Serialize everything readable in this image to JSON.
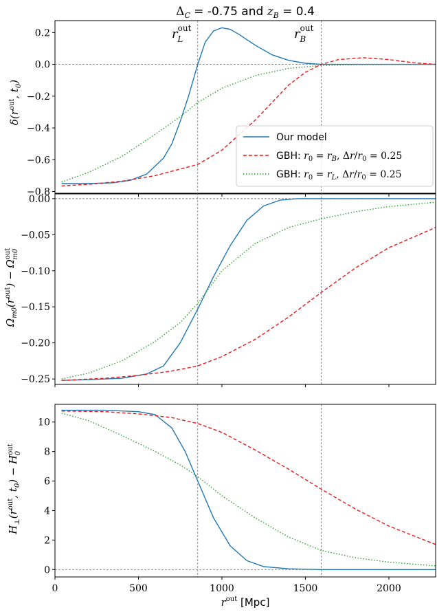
{
  "title": "Δ_C = -0.75 and z_B = 0.4",
  "xlabel": "r^out [Mpc]",
  "colors": {
    "our_model": "#1f77b4",
    "gbh_rb": "#e8191a",
    "gbh_rl": "#2ca02c",
    "ref_line": "#808080"
  },
  "chart_data": [
    {
      "type": "line",
      "ylabel": "δ(r^out, t_0)",
      "xlim": [
        0,
        2280
      ],
      "ylim": [
        -0.815,
        0.275
      ],
      "xticks": [
        0,
        500,
        1000,
        1500,
        2000
      ],
      "yticks": [
        -0.8,
        -0.6,
        -0.4,
        -0.2,
        0.0,
        0.2
      ],
      "ytick_labels": [
        "−0.8",
        "−0.6",
        "−0.4",
        "−0.2",
        "0.0",
        "0.2"
      ],
      "vlines": [
        {
          "x": 855,
          "label": "r_L^out"
        },
        {
          "x": 1595,
          "label": "r_B^out"
        }
      ],
      "hline": 0,
      "legend": {
        "position": "lower-right",
        "entries": [
          "Our model",
          "GBH: r_0 = r_B, Δr/r_0 = 0.25",
          "GBH: r_0 = r_L, Δr/r_0 = 0.25"
        ]
      },
      "series": [
        {
          "name": "Our model",
          "style": "solid",
          "points": [
            [
              40,
              -0.75
            ],
            [
              200,
              -0.75
            ],
            [
              350,
              -0.745
            ],
            [
              450,
              -0.73
            ],
            [
              550,
              -0.69
            ],
            [
              650,
              -0.59
            ],
            [
              700,
              -0.5
            ],
            [
              750,
              -0.36
            ],
            [
              800,
              -0.2
            ],
            [
              855,
              0.0
            ],
            [
              900,
              0.14
            ],
            [
              950,
              0.21
            ],
            [
              1000,
              0.23
            ],
            [
              1050,
              0.22
            ],
            [
              1100,
              0.19
            ],
            [
              1200,
              0.12
            ],
            [
              1300,
              0.06
            ],
            [
              1400,
              0.025
            ],
            [
              1500,
              0.007
            ],
            [
              1595,
              0.0
            ],
            [
              1700,
              0.0
            ],
            [
              2000,
              0.0
            ],
            [
              2280,
              0.0
            ]
          ]
        },
        {
          "name": "GBH: r_0 = r_B, Δr/r_0 = 0.25",
          "style": "dashed",
          "points": [
            [
              40,
              -0.765
            ],
            [
              200,
              -0.755
            ],
            [
              400,
              -0.735
            ],
            [
              600,
              -0.7
            ],
            [
              855,
              -0.63
            ],
            [
              1000,
              -0.54
            ],
            [
              1200,
              -0.35
            ],
            [
              1400,
              -0.13
            ],
            [
              1500,
              -0.05
            ],
            [
              1595,
              0.0
            ],
            [
              1700,
              0.03
            ],
            [
              1850,
              0.042
            ],
            [
              2000,
              0.03
            ],
            [
              2150,
              0.01
            ],
            [
              2280,
              0.0
            ]
          ]
        },
        {
          "name": "GBH: r_0 = r_L, Δr/r_0 = 0.25",
          "style": "dotted",
          "points": [
            [
              40,
              -0.74
            ],
            [
              200,
              -0.68
            ],
            [
              400,
              -0.58
            ],
            [
              600,
              -0.44
            ],
            [
              750,
              -0.33
            ],
            [
              855,
              -0.24
            ],
            [
              1000,
              -0.15
            ],
            [
              1200,
              -0.07
            ],
            [
              1400,
              -0.025
            ],
            [
              1595,
              -0.007
            ],
            [
              1800,
              -0.002
            ],
            [
              2280,
              0.0
            ]
          ]
        }
      ]
    },
    {
      "type": "line",
      "ylabel": "Ω_m0(r^out) − Ω_m0^out",
      "xlim": [
        0,
        2280
      ],
      "ylim": [
        -0.2575,
        0.0075
      ],
      "xticks": [
        0,
        500,
        1000,
        1500,
        2000
      ],
      "yticks": [
        -0.25,
        -0.2,
        -0.15,
        -0.1,
        -0.05,
        0.0
      ],
      "ytick_labels": [
        "−0.25",
        "−0.20",
        "−0.15",
        "−0.10",
        "−0.05",
        "0.00"
      ],
      "vlines": [
        {
          "x": 855
        },
        {
          "x": 1595
        }
      ],
      "hline": 0,
      "series": [
        {
          "name": "Our model",
          "style": "solid",
          "points": [
            [
              40,
              -0.252
            ],
            [
              200,
              -0.251
            ],
            [
              400,
              -0.249
            ],
            [
              550,
              -0.243
            ],
            [
              650,
              -0.232
            ],
            [
              750,
              -0.2
            ],
            [
              855,
              -0.153
            ],
            [
              950,
              -0.108
            ],
            [
              1050,
              -0.065
            ],
            [
              1150,
              -0.03
            ],
            [
              1250,
              -0.01
            ],
            [
              1350,
              -0.002
            ],
            [
              1450,
              0.0
            ],
            [
              2280,
              0.0
            ]
          ]
        },
        {
          "name": "GBH: r_0 = r_B, Δr/r_0 = 0.25",
          "style": "dashed",
          "points": [
            [
              40,
              -0.252
            ],
            [
              300,
              -0.249
            ],
            [
              500,
              -0.245
            ],
            [
              700,
              -0.239
            ],
            [
              855,
              -0.232
            ],
            [
              1000,
              -0.219
            ],
            [
              1200,
              -0.195
            ],
            [
              1400,
              -0.164
            ],
            [
              1595,
              -0.13
            ],
            [
              1800,
              -0.096
            ],
            [
              2000,
              -0.068
            ],
            [
              2280,
              -0.04
            ]
          ]
        },
        {
          "name": "GBH: r_0 = r_L, Δr/r_0 = 0.25",
          "style": "dotted",
          "points": [
            [
              40,
              -0.25
            ],
            [
              200,
              -0.242
            ],
            [
              400,
              -0.225
            ],
            [
              600,
              -0.198
            ],
            [
              750,
              -0.172
            ],
            [
              855,
              -0.145
            ],
            [
              1000,
              -0.1
            ],
            [
              1200,
              -0.062
            ],
            [
              1400,
              -0.04
            ],
            [
              1595,
              -0.028
            ],
            [
              1800,
              -0.018
            ],
            [
              2000,
              -0.011
            ],
            [
              2280,
              -0.005
            ]
          ]
        }
      ]
    },
    {
      "type": "line",
      "ylabel": "H_⊥(r^out, t_0) − H_0^out",
      "xlim": [
        0,
        2280
      ],
      "ylim": [
        -0.5,
        11.2
      ],
      "xticks": [
        0,
        500,
        1000,
        1500,
        2000
      ],
      "xtick_labels": [
        "0",
        "500",
        "1000",
        "1500",
        "2000"
      ],
      "yticks": [
        0,
        2,
        4,
        6,
        8,
        10
      ],
      "ytick_labels": [
        "0",
        "2",
        "4",
        "6",
        "8",
        "10"
      ],
      "vlines": [
        {
          "x": 855
        },
        {
          "x": 1595
        }
      ],
      "hline": 0,
      "series": [
        {
          "name": "Our model",
          "style": "solid",
          "points": [
            [
              40,
              10.8
            ],
            [
              300,
              10.8
            ],
            [
              500,
              10.7
            ],
            [
              600,
              10.5
            ],
            [
              700,
              9.6
            ],
            [
              780,
              8.0
            ],
            [
              855,
              6.0
            ],
            [
              950,
              3.5
            ],
            [
              1050,
              1.6
            ],
            [
              1150,
              0.6
            ],
            [
              1250,
              0.2
            ],
            [
              1400,
              0.05
            ],
            [
              1600,
              0.0
            ],
            [
              2280,
              0.0
            ]
          ]
        },
        {
          "name": "GBH: r_0 = r_B, Δr/r_0 = 0.25",
          "style": "dashed",
          "points": [
            [
              40,
              10.75
            ],
            [
              300,
              10.7
            ],
            [
              500,
              10.55
            ],
            [
              700,
              10.3
            ],
            [
              855,
              9.9
            ],
            [
              1000,
              9.3
            ],
            [
              1200,
              8.1
            ],
            [
              1400,
              6.8
            ],
            [
              1595,
              5.45
            ],
            [
              1800,
              4.1
            ],
            [
              2000,
              2.95
            ],
            [
              2280,
              1.7
            ]
          ]
        },
        {
          "name": "GBH: r_0 = r_L, Δr/r_0 = 0.25",
          "style": "dotted",
          "points": [
            [
              40,
              10.6
            ],
            [
              200,
              10.1
            ],
            [
              400,
              9.1
            ],
            [
              600,
              8.0
            ],
            [
              750,
              7.1
            ],
            [
              855,
              6.3
            ],
            [
              1000,
              5.0
            ],
            [
              1200,
              3.5
            ],
            [
              1400,
              2.2
            ],
            [
              1595,
              1.3
            ],
            [
              1800,
              0.8
            ],
            [
              2000,
              0.5
            ],
            [
              2280,
              0.25
            ]
          ]
        }
      ]
    }
  ]
}
